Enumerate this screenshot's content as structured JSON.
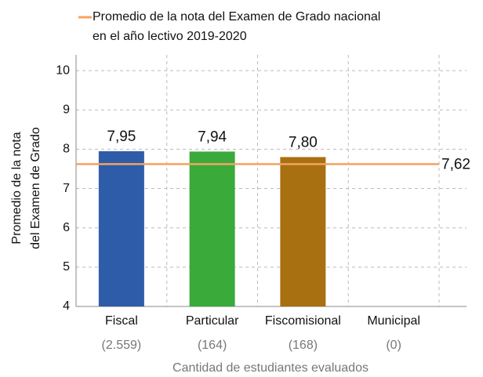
{
  "chart_data": {
    "type": "bar",
    "legend_lines": [
      "Promedio de la nota del  Examen de Grado nacional",
      "en el año lectivo 2019-2020"
    ],
    "ylabel_lines": [
      "Promedio de la nota",
      "del Examen de Grado"
    ],
    "xlabel": "Cantidad de estudiantes evaluados",
    "categories": [
      "Fiscal",
      "Particular",
      "Fiscomisional",
      "Municipal"
    ],
    "category_counts": [
      "(2.559)",
      "(164)",
      "(168)",
      "(0)"
    ],
    "values": [
      7.95,
      7.94,
      7.8,
      null
    ],
    "value_labels": [
      "7,95",
      "7,94",
      "7,80",
      null
    ],
    "colors": [
      "#2e5ca8",
      "#3aaa3a",
      "#a87010",
      "#888888"
    ],
    "reference_line": {
      "value": 7.62,
      "value_label": "7,62",
      "color": "#f4a261"
    },
    "ylim": [
      4,
      10.4
    ],
    "yticks": [
      4,
      5,
      6,
      7,
      8,
      9,
      10
    ],
    "grid": true
  }
}
